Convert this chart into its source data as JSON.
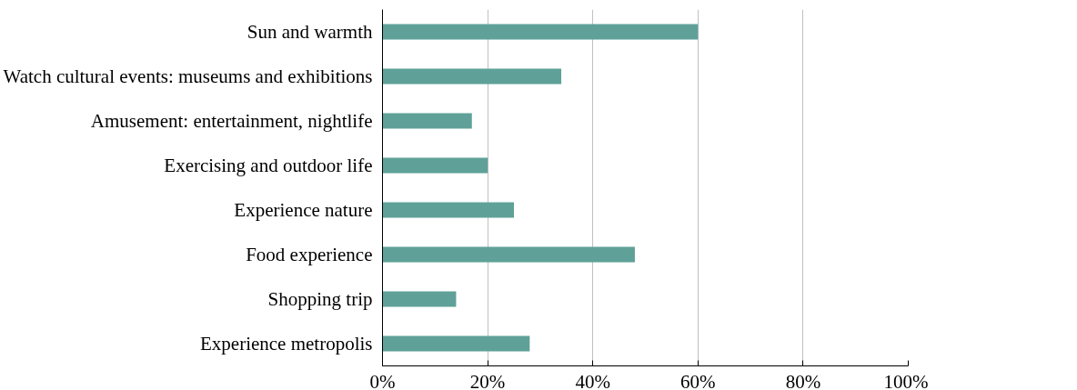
{
  "chart_data": {
    "type": "bar",
    "orientation": "horizontal",
    "categories": [
      "Sun and warmth",
      "Watch cultural events: museums and exhibitions",
      "Amusement: entertainment, nightlife",
      "Exercising and outdoor life",
      "Experience nature",
      "Food experience",
      "Shopping trip",
      "Experience metropolis"
    ],
    "values": [
      60,
      34,
      17,
      20,
      25,
      48,
      14,
      28
    ],
    "color": "#5fa198",
    "xlim": [
      0,
      100
    ],
    "xticks": [
      {
        "value": 0,
        "label": "0%"
      },
      {
        "value": 20,
        "label": "20%"
      },
      {
        "value": 40,
        "label": "40%"
      },
      {
        "value": 60,
        "label": "60%"
      },
      {
        "value": 80,
        "label": "80%"
      },
      {
        "value": 100,
        "label": "100%"
      }
    ],
    "grid": "x"
  }
}
